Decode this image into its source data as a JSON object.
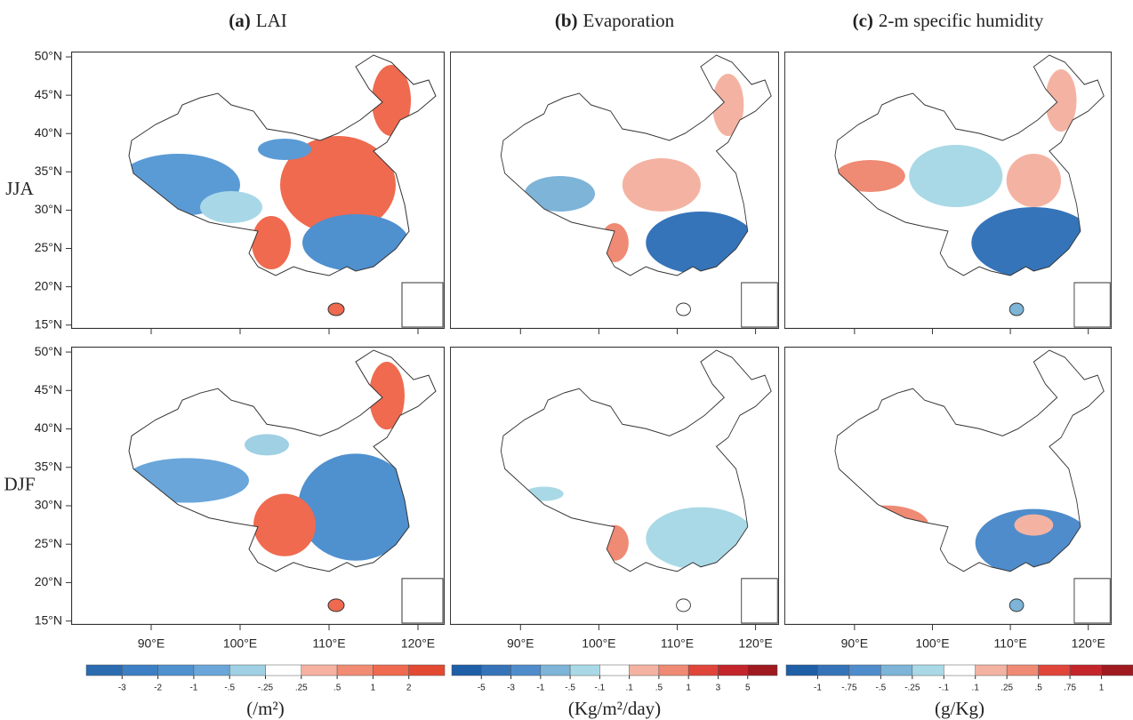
{
  "columns": [
    {
      "label": "(a)",
      "title": "LAI",
      "unit": "(/m²)",
      "colorbar": {
        "colors": [
          "#2b6cb0",
          "#3d7fc4",
          "#4f90cf",
          "#6aa6da",
          "#9fd0e3",
          "#ffffff",
          "#f6b1a0",
          "#f28b74",
          "#ef6a4f",
          "#e34a33"
        ],
        "ticks": [
          -3,
          -2,
          -1,
          {
            "value": -0.5,
            "label": "-.5"
          },
          {
            "value": -0.25,
            "label": "-.25"
          },
          {
            "value": 0.25,
            "label": ".25"
          },
          {
            "value": 0.5,
            "label": ".5"
          },
          1,
          2
        ]
      }
    },
    {
      "label": "(b)",
      "title": "Evaporation",
      "unit": "(Kg/m²/day)",
      "colorbar": {
        "colors": [
          "#1f5fa8",
          "#3574b9",
          "#4f8ccb",
          "#7db4d8",
          "#a9d9e6",
          "#ffffff",
          "#f4b3a2",
          "#ef8a74",
          "#e0453a",
          "#c3252b",
          "#9e1a1f"
        ],
        "ticks": [
          -5,
          -3,
          -1,
          {
            "value": -0.5,
            "label": "-.5"
          },
          {
            "value": -0.1,
            "label": "-.1"
          },
          {
            "value": 0.1,
            "label": ".1"
          },
          {
            "value": 0.5,
            "label": ".5"
          },
          1,
          3,
          5
        ]
      }
    },
    {
      "label": "(c)",
      "title": "2-m specific humidity",
      "unit": "(g/Kg)",
      "colorbar": {
        "colors": [
          "#1f5fa8",
          "#3574b9",
          "#4f8ccb",
          "#7db4d8",
          "#a9d9e6",
          "#ffffff",
          "#f4b3a2",
          "#ef8a74",
          "#e0453a",
          "#c3252b",
          "#9e1a1f"
        ],
        "ticks": [
          -1,
          {
            "value": -0.75,
            "label": "-.75"
          },
          {
            "value": -0.5,
            "label": "-.5"
          },
          {
            "value": -0.25,
            "label": "-.25"
          },
          {
            "value": -0.1,
            "label": "-.1"
          },
          {
            "value": 0.1,
            "label": ".1"
          },
          {
            "value": 0.25,
            "label": ".25"
          },
          {
            "value": 0.5,
            "label": ".5"
          },
          {
            "value": 0.75,
            "label": ".75"
          },
          1
        ]
      }
    }
  ],
  "rows": [
    "JJA",
    "DJF"
  ],
  "map": {
    "xlim": [
      81,
      123
    ],
    "ylim": [
      14.5,
      50.7
    ],
    "xticks": [
      {
        "value": 90,
        "label": "90°E"
      },
      {
        "value": 100,
        "label": "100°E"
      },
      {
        "value": 110,
        "label": "110°E"
      },
      {
        "value": 120,
        "label": "120°E"
      }
    ],
    "yticks": [
      {
        "value": 15,
        "label": "15°N"
      },
      {
        "value": 20,
        "label": "20°N"
      },
      {
        "value": 25,
        "label": "25°N"
      },
      {
        "value": 30,
        "label": "30°N"
      },
      {
        "value": 35,
        "label": "35°N"
      },
      {
        "value": 40,
        "label": "40°N"
      },
      {
        "value": 45,
        "label": "45°N"
      },
      {
        "value": 50,
        "label": "50°N"
      }
    ]
  }
}
